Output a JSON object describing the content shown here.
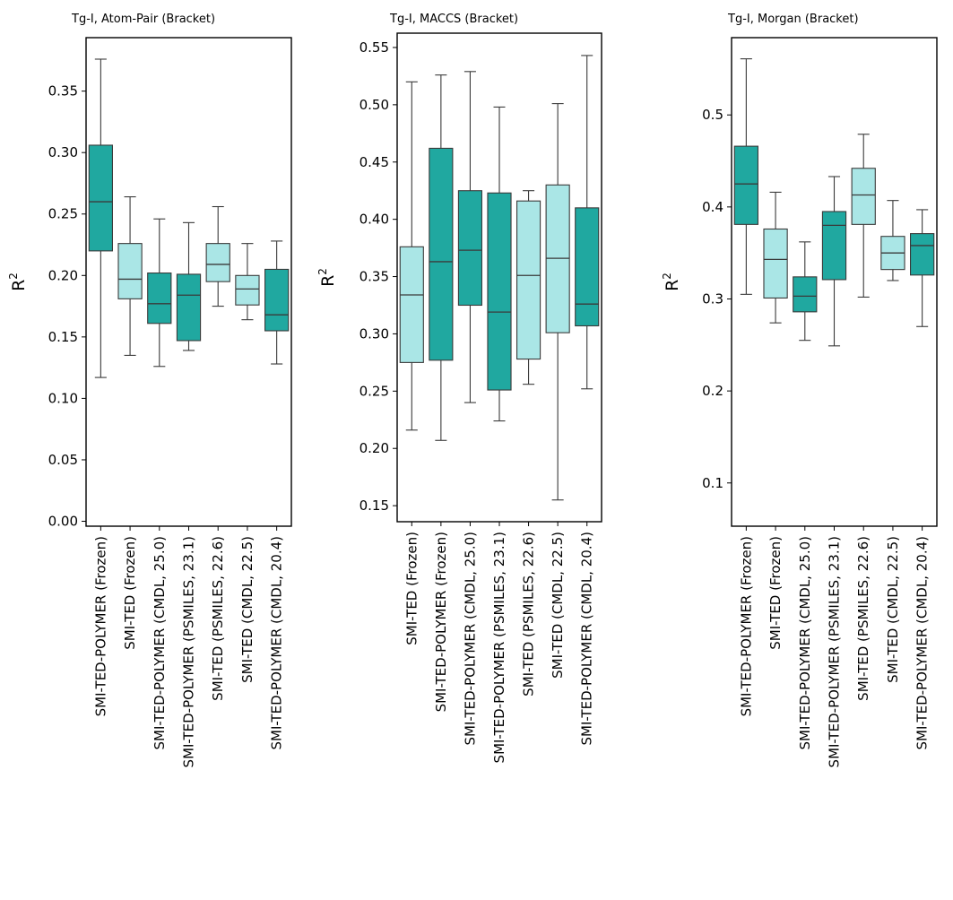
{
  "colors": {
    "dark": "#20a8a0",
    "light": "#aae6e6",
    "edge": "#3a3a3a"
  },
  "chart_data": [
    {
      "type": "box",
      "title": "Tg-I, Atom-Pair (Bracket)",
      "ylabel": "R",
      "ylabel_sup": "2",
      "ylim": [
        -0.004,
        0.3935
      ],
      "yticks": [
        0.0,
        0.05,
        0.1,
        0.15,
        0.2,
        0.25,
        0.3,
        0.35
      ],
      "yticklabels": [
        "0.00",
        "0.05",
        "0.10",
        "0.15",
        "0.20",
        "0.25",
        "0.30",
        "0.35"
      ],
      "categories": [
        "SMI-TED-POLYMER (Frozen)",
        "SMI-TED (Frozen)",
        "SMI-TED-POLYMER (CMDL, 25.0)",
        "SMI-TED-POLYMER (PSMILES, 23.1)",
        "SMI-TED (PSMILES, 22.6)",
        "SMI-TED (CMDL, 22.5)",
        "SMI-TED-POLYMER (CMDL, 20.4)"
      ],
      "fill": [
        "dark",
        "light",
        "dark",
        "dark",
        "light",
        "light",
        "dark"
      ],
      "boxes": [
        {
          "min": 0.117,
          "q1": 0.22,
          "median": 0.26,
          "q3": 0.306,
          "max": 0.376
        },
        {
          "min": 0.135,
          "q1": 0.181,
          "median": 0.197,
          "q3": 0.226,
          "max": 0.264
        },
        {
          "min": 0.126,
          "q1": 0.161,
          "median": 0.177,
          "q3": 0.202,
          "max": 0.246
        },
        {
          "min": 0.139,
          "q1": 0.147,
          "median": 0.184,
          "q3": 0.201,
          "max": 0.243
        },
        {
          "min": 0.175,
          "q1": 0.195,
          "median": 0.209,
          "q3": 0.226,
          "max": 0.256
        },
        {
          "min": 0.164,
          "q1": 0.176,
          "median": 0.189,
          "q3": 0.2,
          "max": 0.226
        },
        {
          "min": 0.128,
          "q1": 0.155,
          "median": 0.168,
          "q3": 0.205,
          "max": 0.228
        }
      ]
    },
    {
      "type": "box",
      "title": "Tg-I, MACCS (Bracket)",
      "ylabel": "R",
      "ylabel_sup": "2",
      "ylim": [
        0.136,
        0.5625
      ],
      "yticks": [
        0.15,
        0.2,
        0.25,
        0.3,
        0.35,
        0.4,
        0.45,
        0.5,
        0.55
      ],
      "yticklabels": [
        "0.15",
        "0.20",
        "0.25",
        "0.30",
        "0.35",
        "0.40",
        "0.45",
        "0.50",
        "0.55"
      ],
      "categories": [
        "SMI-TED (Frozen)",
        "SMI-TED-POLYMER (Frozen)",
        "SMI-TED-POLYMER (CMDL, 25.0)",
        "SMI-TED-POLYMER (PSMILES, 23.1)",
        "SMI-TED (PSMILES, 22.6)",
        "SMI-TED (CMDL, 22.5)",
        "SMI-TED-POLYMER (CMDL, 20.4)"
      ],
      "fill": [
        "light",
        "dark",
        "dark",
        "dark",
        "light",
        "light",
        "dark"
      ],
      "boxes": [
        {
          "min": 0.216,
          "q1": 0.275,
          "median": 0.334,
          "q3": 0.376,
          "max": 0.52
        },
        {
          "min": 0.207,
          "q1": 0.277,
          "median": 0.363,
          "q3": 0.462,
          "max": 0.526
        },
        {
          "min": 0.24,
          "q1": 0.325,
          "median": 0.373,
          "q3": 0.425,
          "max": 0.529
        },
        {
          "min": 0.224,
          "q1": 0.251,
          "median": 0.319,
          "q3": 0.423,
          "max": 0.498
        },
        {
          "min": 0.256,
          "q1": 0.278,
          "median": 0.351,
          "q3": 0.416,
          "max": 0.425
        },
        {
          "min": 0.155,
          "q1": 0.301,
          "median": 0.366,
          "q3": 0.43,
          "max": 0.501
        },
        {
          "min": 0.252,
          "q1": 0.307,
          "median": 0.326,
          "q3": 0.41,
          "max": 0.543
        }
      ]
    },
    {
      "type": "box",
      "title": "Tg-I, Morgan (Bracket)",
      "ylabel": "R",
      "ylabel_sup": "2",
      "ylim": [
        0.053,
        0.584
      ],
      "yticks": [
        0.1,
        0.2,
        0.3,
        0.4,
        0.5
      ],
      "yticklabels": [
        "0.1",
        "0.2",
        "0.3",
        "0.4",
        "0.5"
      ],
      "categories": [
        "SMI-TED-POLYMER (Frozen)",
        "SMI-TED (Frozen)",
        "SMI-TED-POLYMER (CMDL, 25.0)",
        "SMI-TED-POLYMER (PSMILES, 23.1)",
        "SMI-TED (PSMILES, 22.6)",
        "SMI-TED (CMDL, 22.5)",
        "SMI-TED-POLYMER (CMDL, 20.4)"
      ],
      "fill": [
        "dark",
        "light",
        "dark",
        "dark",
        "light",
        "light",
        "dark"
      ],
      "boxes": [
        {
          "min": 0.305,
          "q1": 0.381,
          "median": 0.425,
          "q3": 0.466,
          "max": 0.561
        },
        {
          "min": 0.274,
          "q1": 0.301,
          "median": 0.343,
          "q3": 0.376,
          "max": 0.416
        },
        {
          "min": 0.255,
          "q1": 0.286,
          "median": 0.303,
          "q3": 0.324,
          "max": 0.362
        },
        {
          "min": 0.249,
          "q1": 0.321,
          "median": 0.38,
          "q3": 0.395,
          "max": 0.433
        },
        {
          "min": 0.302,
          "q1": 0.381,
          "median": 0.413,
          "q3": 0.442,
          "max": 0.479
        },
        {
          "min": 0.32,
          "q1": 0.332,
          "median": 0.35,
          "q3": 0.368,
          "max": 0.407
        },
        {
          "min": 0.27,
          "q1": 0.326,
          "median": 0.358,
          "q3": 0.371,
          "max": 0.397
        }
      ]
    }
  ]
}
